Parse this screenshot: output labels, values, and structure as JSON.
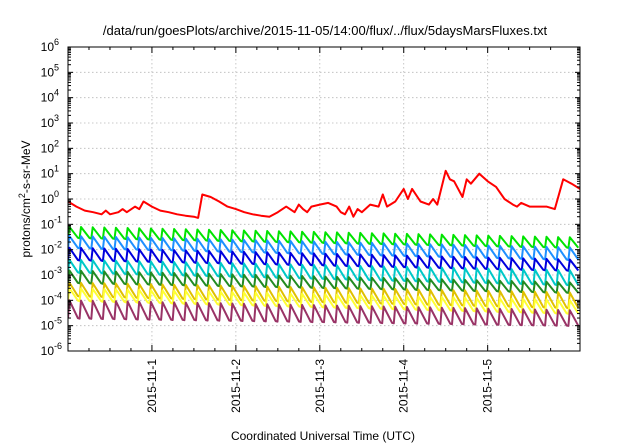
{
  "chart_data": {
    "type": "line",
    "title": "/data/run/goesPlots/archive/2015-11-05/14:00/flux/../flux/5daysMarsFluxes.txt",
    "xlabel": "Coordinated Universal Time (UTC)",
    "ylabel_main": "protons/cm",
    "ylabel_sup": "2",
    "ylabel_tail": "-s-sr-MeV",
    "yscale": "log",
    "ylim": [
      1e-06,
      1000000.0
    ],
    "xlim": [
      0,
      6.1
    ],
    "y_ticks": [
      {
        "exp": "-6",
        "value": -6
      },
      {
        "exp": "-5",
        "value": -5
      },
      {
        "exp": "-4",
        "value": -4
      },
      {
        "exp": "-3",
        "value": -3
      },
      {
        "exp": "-2",
        "value": -2
      },
      {
        "exp": "-1",
        "value": -1
      },
      {
        "exp": "0",
        "value": 0
      },
      {
        "exp": "1",
        "value": 1
      },
      {
        "exp": "2",
        "value": 2
      },
      {
        "exp": "3",
        "value": 3
      },
      {
        "exp": "4",
        "value": 4
      },
      {
        "exp": "5",
        "value": 5
      },
      {
        "exp": "6",
        "value": 6
      }
    ],
    "y_tick_base": "10",
    "x_ticks": [
      {
        "label": "2015-11-1",
        "value": 1
      },
      {
        "label": "2015-11-2",
        "value": 2
      },
      {
        "label": "2015-11-3",
        "value": 3
      },
      {
        "label": "2015-11-4",
        "value": 4
      },
      {
        "label": "2015-11-5",
        "value": 5
      }
    ],
    "grid": true,
    "series": [
      {
        "color": "#ff0000",
        "shape": "smooth",
        "x": [
          0.0,
          0.1,
          0.2,
          0.3,
          0.4,
          0.45,
          0.5,
          0.6,
          0.65,
          0.7,
          0.8,
          0.85,
          0.9,
          1.0,
          1.1,
          1.2,
          1.3,
          1.4,
          1.5,
          1.55,
          1.6,
          1.7,
          1.8,
          1.9,
          2.0,
          2.1,
          2.2,
          2.3,
          2.4,
          2.5,
          2.6,
          2.7,
          2.75,
          2.8,
          2.85,
          2.9,
          3.0,
          3.1,
          3.2,
          3.25,
          3.3,
          3.35,
          3.4,
          3.45,
          3.5,
          3.6,
          3.7,
          3.75,
          3.8,
          3.9,
          4.0,
          4.05,
          4.1,
          4.2,
          4.3,
          4.35,
          4.4,
          4.5,
          4.55,
          4.6,
          4.7,
          4.75,
          4.8,
          4.9,
          5.0,
          5.1,
          5.2,
          5.3,
          5.35,
          5.4,
          5.5,
          5.6,
          5.7,
          5.8,
          5.9,
          6.0,
          6.1
        ],
        "y": [
          0.8,
          0.5,
          0.35,
          0.3,
          0.25,
          0.35,
          0.25,
          0.3,
          0.4,
          0.3,
          0.5,
          0.4,
          0.8,
          0.5,
          0.35,
          0.3,
          0.25,
          0.22,
          0.2,
          0.18,
          1.5,
          1.2,
          0.8,
          0.5,
          0.4,
          0.3,
          0.25,
          0.22,
          0.2,
          0.3,
          0.5,
          0.3,
          0.6,
          0.4,
          0.3,
          0.5,
          0.6,
          0.7,
          0.5,
          0.3,
          0.25,
          0.5,
          0.2,
          0.4,
          0.3,
          0.6,
          0.5,
          1.5,
          0.5,
          0.8,
          2.5,
          1.0,
          2.5,
          0.8,
          0.6,
          1.0,
          0.6,
          13.0,
          6.0,
          5.0,
          1.2,
          6.0,
          4.0,
          10.0,
          5.0,
          3.0,
          1.0,
          0.6,
          0.5,
          0.7,
          0.5,
          0.5,
          0.5,
          0.4,
          6.0,
          4.0,
          2.5
        ]
      },
      {
        "color": "#00e400",
        "shape": "saw",
        "cycles": 44,
        "hi": [
          0.08,
          0.03
        ],
        "lo": [
          0.03,
          0.012
        ]
      },
      {
        "color": "#1e90ff",
        "shape": "saw",
        "cycles": 44,
        "hi": [
          0.035,
          0.012
        ],
        "lo": [
          0.012,
          0.004
        ]
      },
      {
        "color": "#0000dd",
        "shape": "saw",
        "cycles": 44,
        "hi": [
          0.012,
          0.004
        ],
        "lo": [
          0.004,
          0.0015
        ]
      },
      {
        "color": "#00c8c8",
        "shape": "saw",
        "cycles": 44,
        "hi": [
          0.004,
          0.0015
        ],
        "lo": [
          0.0013,
          0.0004
        ]
      },
      {
        "color": "#228b22",
        "shape": "saw",
        "cycles": 44,
        "hi": [
          0.0015,
          0.0005
        ],
        "lo": [
          0.0005,
          0.0002
        ]
      },
      {
        "color": "#e0c000",
        "shape": "saw",
        "cycles": 44,
        "hi": [
          0.0005,
          0.0002
        ],
        "lo": [
          0.00015,
          5e-05
        ]
      },
      {
        "color": "#ffff33",
        "shape": "saw",
        "cycles": 44,
        "hi": [
          0.0003,
          0.0001
        ],
        "lo": [
          0.0001,
          3e-05
        ]
      },
      {
        "color": "#993366",
        "shape": "saw",
        "cycles": 44,
        "hi": [
          0.0001,
          4e-05
        ],
        "lo": [
          2e-05,
          1e-05
        ]
      }
    ]
  }
}
